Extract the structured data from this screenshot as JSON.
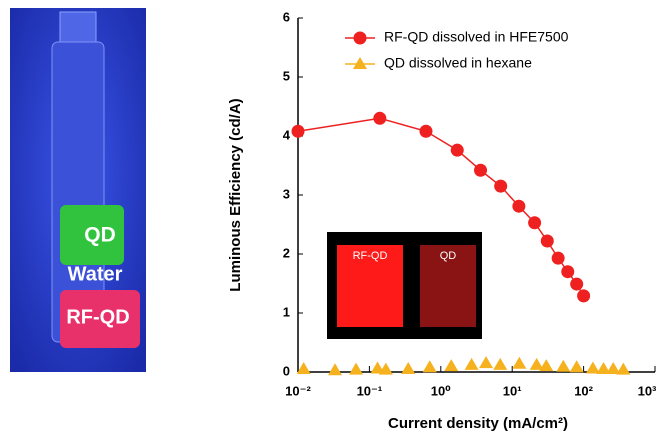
{
  "chart_data": {
    "type": "line",
    "xlabel": "Current density (mA/cm²)",
    "ylabel": "Luminous Efficiency (cd/A)",
    "xscale": "log",
    "xlim": [
      0.01,
      1000
    ],
    "ylim": [
      0,
      6
    ],
    "xticks": [
      {
        "value": 0.01,
        "label": "10⁻²"
      },
      {
        "value": 0.1,
        "label": "10⁻¹"
      },
      {
        "value": 1,
        "label": "10⁰"
      },
      {
        "value": 10,
        "label": "10¹"
      },
      {
        "value": 100,
        "label": "10²"
      },
      {
        "value": 1000,
        "label": "10³"
      }
    ],
    "yticks": [
      0,
      1,
      2,
      3,
      4,
      5,
      6
    ],
    "legend": "upper right",
    "series": [
      {
        "name": "RF-QD dissolved in HFE7500",
        "color": "#ee2020",
        "marker": "circle",
        "x": [
          0.01,
          0.14,
          0.62,
          1.7,
          3.6,
          6.9,
          12.4,
          20.6,
          31,
          44,
          60,
          80,
          100
        ],
        "values": [
          4.08,
          4.3,
          4.08,
          3.76,
          3.42,
          3.15,
          2.81,
          2.53,
          2.22,
          1.93,
          1.7,
          1.49,
          1.29
        ]
      },
      {
        "name": "QD dissolved in hexane",
        "color": "#f5b21e",
        "marker": "triangle",
        "x": [
          0.012,
          0.033,
          0.065,
          0.13,
          0.17,
          0.35,
          0.7,
          1.4,
          2.7,
          4.3,
          6.8,
          12.6,
          22,
          30,
          52,
          80,
          135,
          190,
          260,
          360
        ],
        "values": [
          0.05,
          0.03,
          0.04,
          0.06,
          0.04,
          0.05,
          0.08,
          0.1,
          0.12,
          0.15,
          0.12,
          0.14,
          0.12,
          0.1,
          0.09,
          0.08,
          0.06,
          0.05,
          0.05,
          0.04
        ]
      }
    ]
  },
  "photo": {
    "labels": [
      "QD",
      "Water",
      "RF-QD"
    ]
  },
  "inset": {
    "labels": [
      "RF-QD",
      "QD"
    ]
  }
}
